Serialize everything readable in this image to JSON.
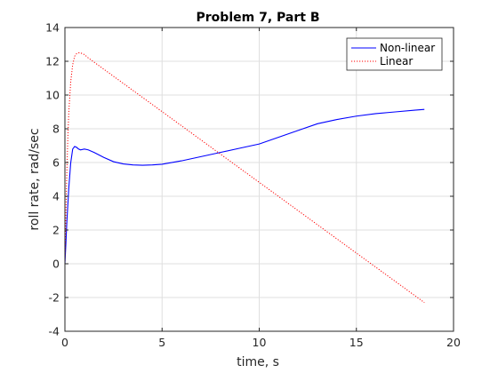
{
  "chart_data": {
    "type": "line",
    "title": "Problem 7, Part B",
    "xlabel": "time, s",
    "ylabel": "roll rate, rad/sec",
    "xlim": [
      0,
      20
    ],
    "ylim": [
      -4,
      14
    ],
    "xticks": [
      0,
      5,
      10,
      15,
      20
    ],
    "yticks": [
      -4,
      -2,
      0,
      2,
      4,
      6,
      8,
      10,
      12,
      14
    ],
    "grid": true,
    "legend_position": "top-right",
    "series": [
      {
        "name": "Non-linear",
        "color": "#0000ff",
        "style": "solid",
        "x": [
          0,
          0.05,
          0.1,
          0.2,
          0.3,
          0.4,
          0.5,
          0.6,
          0.7,
          0.8,
          1.0,
          1.2,
          1.5,
          2.0,
          2.5,
          3.0,
          3.5,
          4.0,
          4.5,
          5.0,
          6.0,
          7.0,
          8.0,
          9.0,
          10.0,
          11.0,
          12.0,
          13.0,
          14.0,
          15.0,
          16.0,
          17.0,
          18.0,
          18.5
        ],
        "y": [
          0,
          1.2,
          2.5,
          4.5,
          6.0,
          6.8,
          6.95,
          6.9,
          6.8,
          6.75,
          6.8,
          6.75,
          6.6,
          6.3,
          6.05,
          5.92,
          5.86,
          5.84,
          5.86,
          5.9,
          6.1,
          6.35,
          6.6,
          6.85,
          7.1,
          7.5,
          7.9,
          8.3,
          8.55,
          8.75,
          8.9,
          9.0,
          9.1,
          9.15
        ]
      },
      {
        "name": "Linear",
        "color": "#ff0000",
        "style": "dotted",
        "x": [
          0,
          0.05,
          0.1,
          0.15,
          0.2,
          0.3,
          0.4,
          0.5,
          0.6,
          0.7,
          0.8,
          0.9,
          1.0,
          1.2,
          1.5,
          18.5
        ],
        "y": [
          0,
          3.0,
          5.5,
          7.5,
          9.0,
          10.8,
          11.8,
          12.3,
          12.45,
          12.5,
          12.5,
          12.45,
          12.4,
          12.2,
          11.95,
          -2.3
        ]
      }
    ]
  }
}
